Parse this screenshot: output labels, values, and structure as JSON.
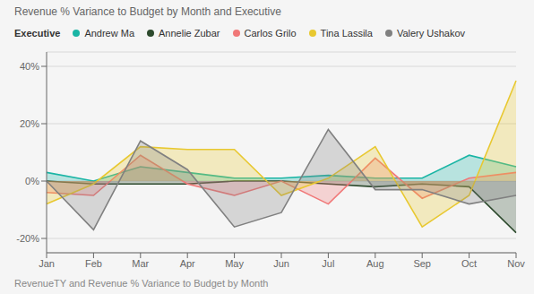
{
  "chart_data": {
    "type": "area",
    "title": "Revenue % Variance to Budget by Month and Executive",
    "subtitle": "RevenueTY and Revenue % Variance to Budget by Month",
    "legend_title": "Executive",
    "categories": [
      "Jan",
      "Feb",
      "Mar",
      "Apr",
      "May",
      "Jun",
      "Jul",
      "Aug",
      "Sep",
      "Oct",
      "Nov"
    ],
    "series": [
      {
        "name": "Andrew Ma",
        "color": "#1ab5a5",
        "values": [
          3,
          0,
          5,
          3,
          1,
          1,
          2,
          1,
          1,
          9,
          5
        ]
      },
      {
        "name": "Annelie Zubar",
        "color": "#2d4a2d",
        "values": [
          0,
          -1,
          -1,
          -1,
          0,
          0,
          -1,
          -2,
          -1,
          -2,
          -18
        ]
      },
      {
        "name": "Carlos Grilo",
        "color": "#f07878",
        "values": [
          -4,
          -5,
          9,
          -1,
          -5,
          0,
          -8,
          8,
          -6,
          1,
          3
        ]
      },
      {
        "name": "Tina Lassila",
        "color": "#e8c830",
        "values": [
          -8,
          -1,
          12,
          11,
          11,
          -5,
          1,
          12,
          -16,
          -5,
          35
        ]
      },
      {
        "name": "Valery Ushakov",
        "color": "#808080",
        "values": [
          0,
          -17,
          14,
          4,
          -16,
          -11,
          18,
          -3,
          -3,
          -8,
          -5
        ]
      }
    ],
    "ylim": [
      -25,
      45
    ],
    "yticks": [
      {
        "value": -20,
        "label": "-20%"
      },
      {
        "value": 0,
        "label": "0%"
      },
      {
        "value": 20,
        "label": "20%"
      },
      {
        "value": 40,
        "label": "40%"
      }
    ],
    "grid": true,
    "legend": "top"
  }
}
